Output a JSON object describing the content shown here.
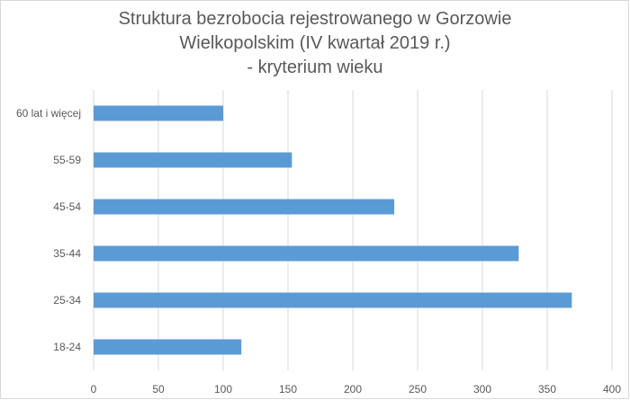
{
  "chart_data": {
    "type": "bar",
    "orientation": "horizontal",
    "title_lines": [
      "Struktura bezrobocia rejestrowanego w Gorzowie",
      "Wielkopolskim (IV kwartał 2019 r.)",
      "- kryterium wieku"
    ],
    "categories": [
      "60 lat i więcej",
      "55-59",
      "45-54",
      "35-44",
      "25-34",
      "18-24"
    ],
    "values": [
      100,
      153,
      232,
      328,
      369,
      114
    ],
    "xlim": [
      0,
      400
    ],
    "xticks": [
      "0",
      "50",
      "100",
      "150",
      "200",
      "250",
      "300",
      "350",
      "400"
    ],
    "grid": true,
    "legend": "none",
    "bar_color": "#5b9bd5"
  }
}
